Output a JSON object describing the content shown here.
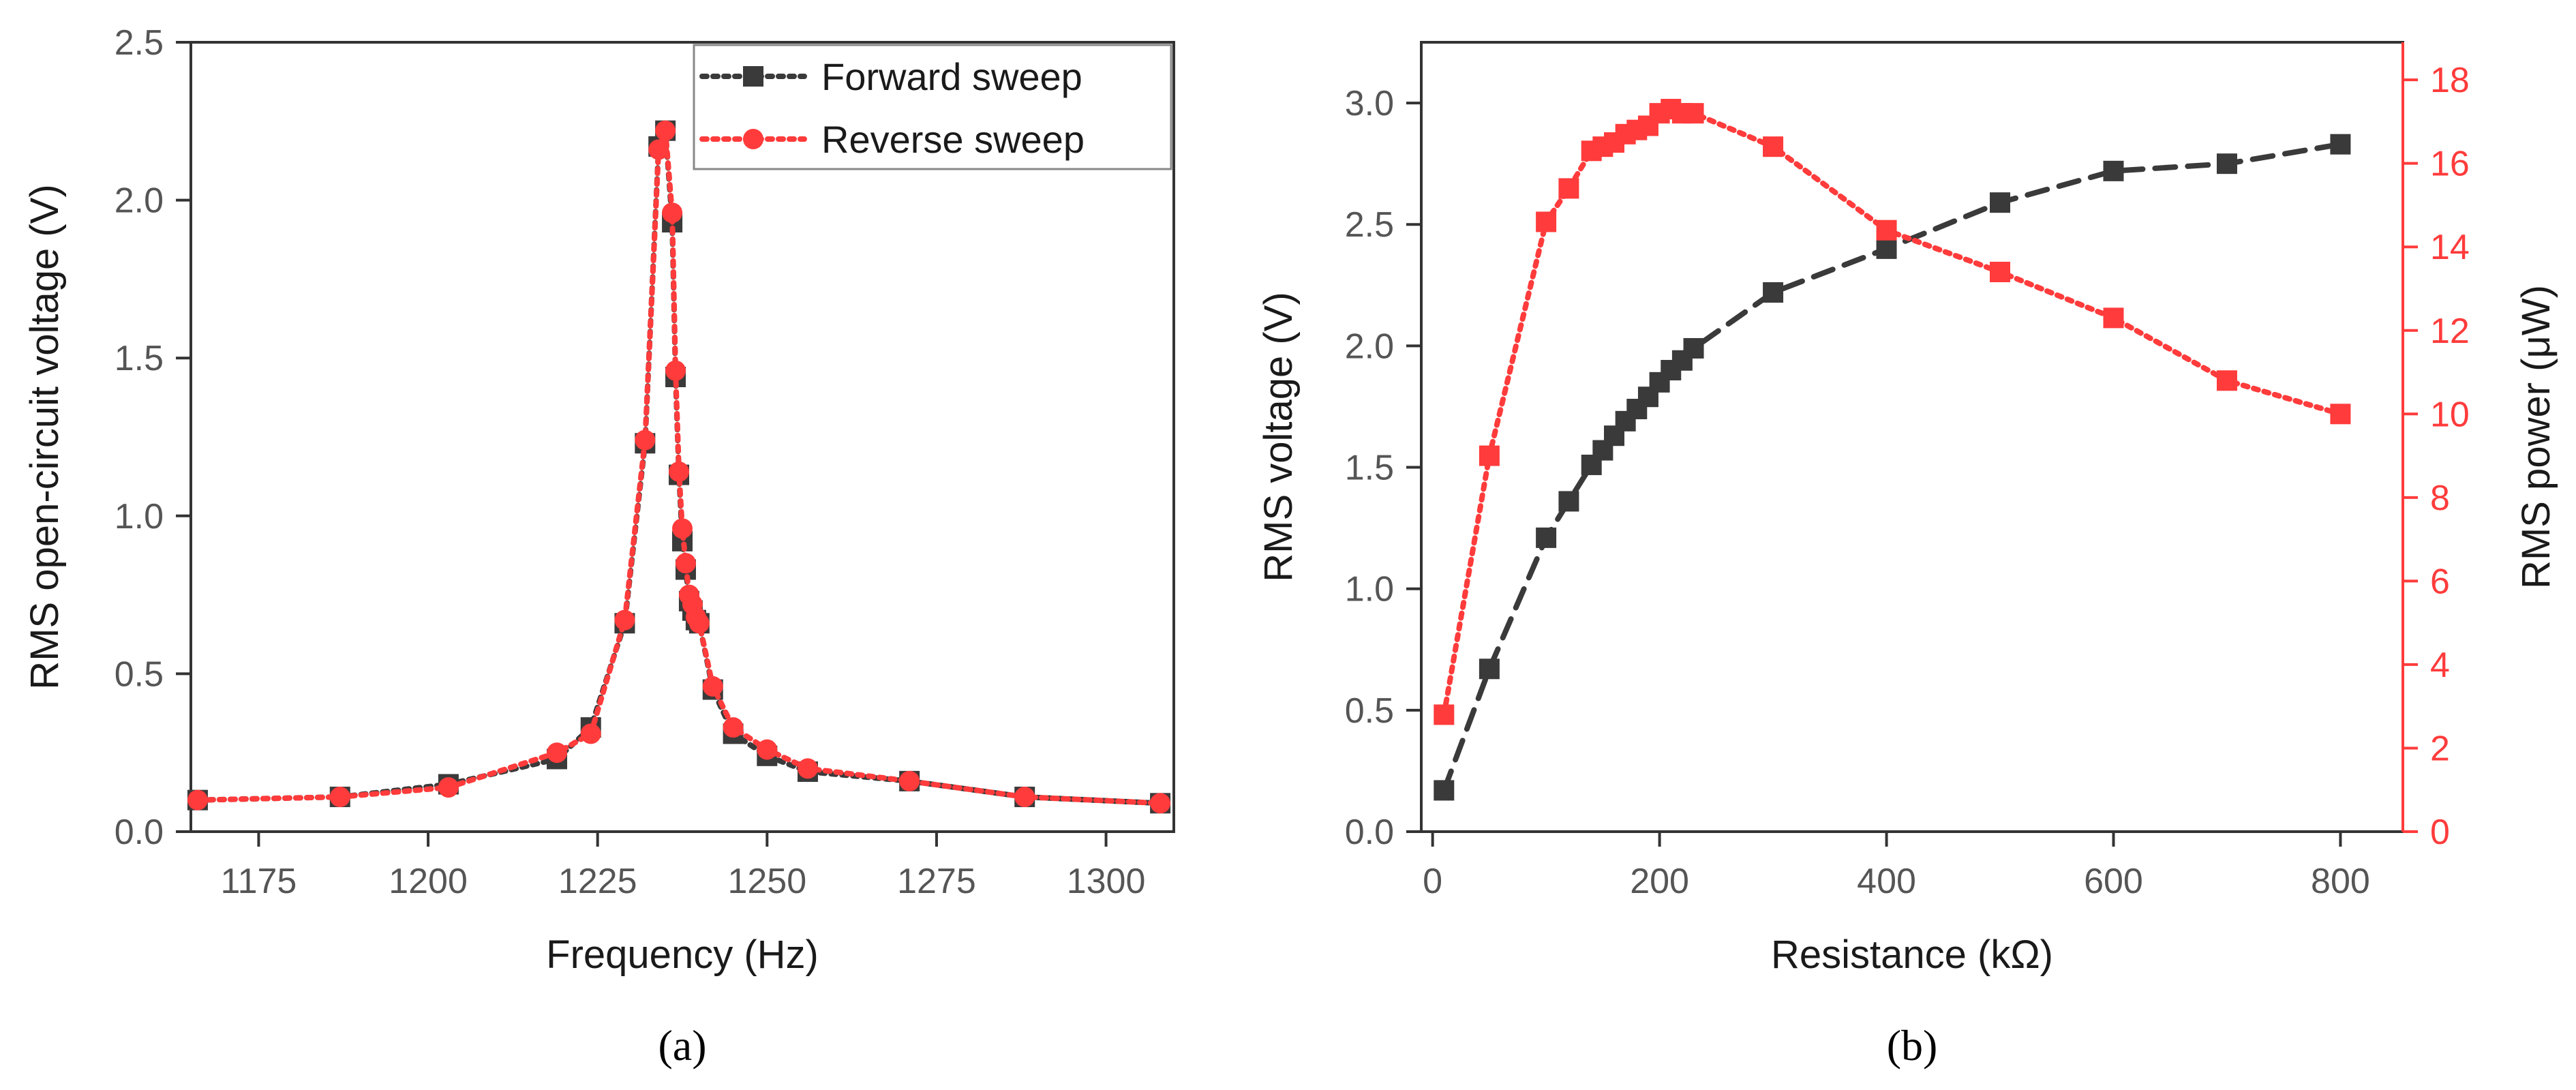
{
  "chart_data": [
    {
      "panel": "(a)",
      "type": "line",
      "xlabel": "Frequency (Hz)",
      "ylabel": "RMS open-circuit voltage (V)",
      "xlim": [
        1165,
        1310
      ],
      "ylim": [
        0,
        2.5
      ],
      "xticks": [
        1175,
        1200,
        1225,
        1250,
        1275,
        1300
      ],
      "yticks": [
        0.0,
        0.5,
        1.0,
        1.5,
        2.0,
        2.5
      ],
      "yticklabels": [
        "0.0",
        "0.5",
        "1.0",
        "1.5",
        "2.0",
        "2.5"
      ],
      "legend": "top-right",
      "series": [
        {
          "name": "Forward sweep",
          "color": "#3a3a3a",
          "marker": "square",
          "linestyle": "dotted",
          "x": [
            1166,
            1187,
            1203,
            1219,
            1224,
            1229,
            1232,
            1234,
            1235,
            1236,
            1236.5,
            1237,
            1237.5,
            1238,
            1238.5,
            1239,
            1239.5,
            1240,
            1242,
            1245,
            1250,
            1256,
            1271,
            1288,
            1308
          ],
          "y": [
            0.1,
            0.11,
            0.15,
            0.23,
            0.33,
            0.66,
            1.23,
            2.17,
            2.22,
            1.93,
            1.44,
            1.13,
            0.92,
            0.83,
            0.73,
            0.7,
            0.67,
            0.66,
            0.45,
            0.31,
            0.24,
            0.19,
            0.16,
            0.11,
            0.09
          ]
        },
        {
          "name": "Reverse sweep",
          "color": "#ff3b3b",
          "marker": "circle",
          "linestyle": "dotted",
          "x": [
            1166,
            1187,
            1203,
            1219,
            1224,
            1229,
            1232,
            1234,
            1235,
            1236,
            1236.5,
            1237,
            1237.5,
            1238,
            1238.5,
            1239,
            1239.5,
            1240,
            1242,
            1245,
            1250,
            1256,
            1271,
            1288,
            1308
          ],
          "y": [
            0.1,
            0.11,
            0.14,
            0.25,
            0.31,
            0.67,
            1.24,
            2.16,
            2.22,
            1.96,
            1.46,
            1.14,
            0.96,
            0.85,
            0.75,
            0.72,
            0.68,
            0.66,
            0.46,
            0.33,
            0.26,
            0.2,
            0.16,
            0.11,
            0.09
          ]
        }
      ]
    },
    {
      "panel": "(b)",
      "type": "line",
      "xlabel": "Resistance (kΩ)",
      "ylabel": "RMS voltage (V)",
      "y2label": "RMS power (μW)",
      "xlim": [
        -10,
        855
      ],
      "ylim": [
        0,
        3.25
      ],
      "y2lim": [
        0,
        18.9
      ],
      "xticks": [
        0,
        200,
        400,
        600,
        800
      ],
      "yticks": [
        0.0,
        0.5,
        1.0,
        1.5,
        2.0,
        2.5,
        3.0
      ],
      "yticklabels": [
        "0.0",
        "0.5",
        "1.0",
        "1.5",
        "2.0",
        "2.5",
        "3.0"
      ],
      "y2ticks": [
        0,
        2,
        4,
        6,
        8,
        10,
        12,
        14,
        16,
        18
      ],
      "series": [
        {
          "name": "RMS voltage",
          "axis": "left",
          "color": "#3a3a3a",
          "marker": "square",
          "linestyle": "dashed",
          "x": [
            10,
            50,
            100,
            120,
            140,
            150,
            160,
            170,
            180,
            190,
            200,
            210,
            220,
            230,
            300,
            400,
            500,
            600,
            700,
            800
          ],
          "y": [
            0.17,
            0.67,
            1.21,
            1.36,
            1.51,
            1.57,
            1.63,
            1.69,
            1.74,
            1.79,
            1.85,
            1.9,
            1.94,
            1.99,
            2.22,
            2.4,
            2.59,
            2.72,
            2.75,
            2.83
          ]
        },
        {
          "name": "RMS power",
          "axis": "right",
          "color": "#ff3b3b",
          "marker": "square",
          "linestyle": "dotted",
          "x": [
            10,
            50,
            100,
            120,
            140,
            150,
            160,
            170,
            180,
            190,
            200,
            210,
            220,
            230,
            300,
            400,
            500,
            600,
            700,
            800
          ],
          "y": [
            2.8,
            9.0,
            14.6,
            15.4,
            16.3,
            16.4,
            16.5,
            16.7,
            16.8,
            16.9,
            17.2,
            17.3,
            17.2,
            17.2,
            16.4,
            14.4,
            13.4,
            12.3,
            10.8,
            10.0
          ]
        }
      ]
    }
  ]
}
